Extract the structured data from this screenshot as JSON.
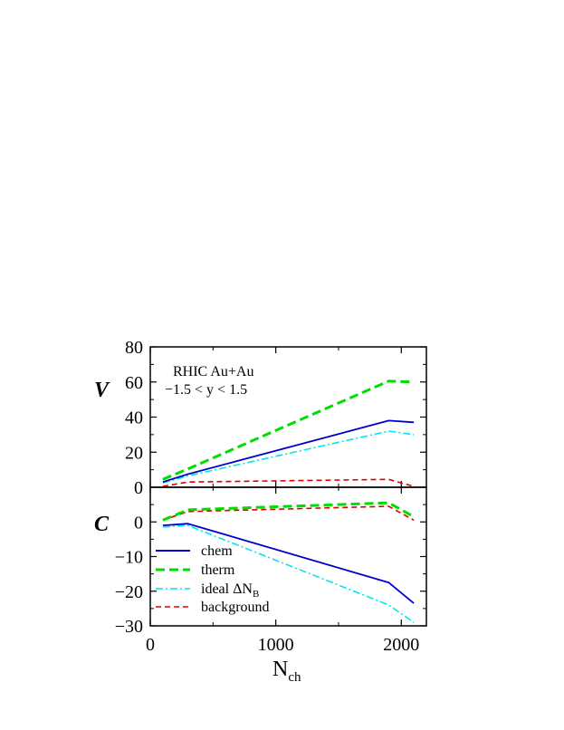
{
  "chart_data": [
    {
      "type": "line",
      "panel_label": "V",
      "annotation": [
        "RHIC Au+Au",
        "−1.5 < y < 1.5"
      ],
      "xlim": [
        0,
        2200
      ],
      "ylim": [
        0,
        80
      ],
      "yticks": [
        0,
        20,
        40,
        60,
        80
      ],
      "ytick_labels": [
        "0",
        "20",
        "40",
        "60",
        "80"
      ],
      "x": [
        100,
        300,
        1900,
        2100
      ],
      "series": [
        {
          "key": "chem",
          "color": "#0000cc",
          "dash": "solid",
          "values": [
            3,
            7.5,
            38,
            37
          ]
        },
        {
          "key": "therm",
          "color": "#00dd00",
          "dash": "long-dash",
          "values": [
            4.5,
            10.5,
            60.5,
            60
          ]
        },
        {
          "key": "ideal",
          "color": "#00e5ee",
          "dash": "dash-dot",
          "values": [
            2.5,
            6.5,
            32,
            30
          ]
        },
        {
          "key": "background",
          "color": "#dd0000",
          "dash": "dash",
          "values": [
            0.5,
            3,
            4.5,
            0.5
          ]
        }
      ]
    },
    {
      "type": "line",
      "panel_label": "C",
      "xlim": [
        0,
        2200
      ],
      "ylim": [
        -30,
        10
      ],
      "yticks": [
        -30,
        -20,
        -10,
        0
      ],
      "ytick_labels": [
        "−30",
        "−20",
        "−10",
        "0"
      ],
      "xticks": [
        0,
        1000,
        2000
      ],
      "xtick_labels": [
        "0",
        "1000",
        "2000"
      ],
      "xlabel": "N",
      "xlabel_sub": "ch",
      "x": [
        100,
        300,
        1900,
        2100
      ],
      "series": [
        {
          "key": "chem",
          "name": "chem",
          "color": "#0000cc",
          "dash": "solid",
          "values": [
            -1,
            -0.5,
            -17.5,
            -23.5
          ]
        },
        {
          "key": "therm",
          "name": "therm",
          "color": "#00dd00",
          "dash": "long-dash",
          "values": [
            0.5,
            3.5,
            5.5,
            1.5
          ]
        },
        {
          "key": "ideal",
          "name": "ideal ΔN",
          "name_sub": "B",
          "color": "#00e5ee",
          "dash": "dash-dot",
          "values": [
            -1.5,
            -1,
            -24,
            -29
          ]
        },
        {
          "key": "background",
          "name": "background",
          "color": "#dd0000",
          "dash": "dash",
          "values": [
            0.5,
            3,
            4.5,
            0.5
          ]
        }
      ]
    }
  ]
}
